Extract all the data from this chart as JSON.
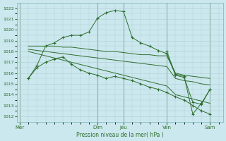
{
  "bg_color": "#cce8ef",
  "grid_color": "#b0cdd4",
  "line_color": "#2d6e2d",
  "title": "Pression niveau de la mer( hPa )",
  "ylim": [
    1011.5,
    1022.5
  ],
  "yticks": [
    1012,
    1013,
    1014,
    1015,
    1016,
    1017,
    1018,
    1019,
    1020,
    1021,
    1022
  ],
  "day_labels": [
    "Mer",
    "Dim",
    "Jeu",
    "Ven",
    "Sam"
  ],
  "day_x": [
    0,
    9,
    12,
    17,
    22
  ],
  "vline_x": [
    0,
    9,
    12,
    17,
    22
  ],
  "xlim": [
    -0.3,
    23.5
  ],
  "s1_x": [
    1,
    2,
    3,
    4,
    5,
    6,
    7,
    8,
    9,
    10,
    11,
    12,
    13,
    14,
    15,
    16,
    17
  ],
  "s1_y": [
    1015.5,
    1016.7,
    1018.5,
    1018.8,
    1019.3,
    1019.5,
    1019.5,
    1019.8,
    1021.1,
    1021.6,
    1021.8,
    1021.7,
    1019.3,
    1018.8,
    1018.5,
    1018.1,
    1017.8
  ],
  "s2_x": [
    1,
    2,
    3,
    4,
    5,
    6,
    7,
    8,
    9,
    10,
    11,
    12,
    13,
    14,
    15,
    16,
    17,
    18,
    19,
    20,
    21,
    22
  ],
  "s2_y": [
    1018.5,
    1018.5,
    1018.5,
    1018.5,
    1018.4,
    1018.4,
    1018.3,
    1018.2,
    1018.1,
    1018.0,
    1018.0,
    1017.9,
    1017.8,
    1017.7,
    1017.7,
    1017.6,
    1017.6,
    1016.0,
    1015.8,
    1015.7,
    1015.6,
    1015.5
  ],
  "s3_x": [
    1,
    2,
    3,
    4,
    5,
    6,
    7,
    8,
    9,
    10,
    11,
    12,
    13,
    14,
    15,
    16,
    17,
    18,
    19,
    20,
    21,
    22
  ],
  "s3_y": [
    1018.2,
    1018.1,
    1018.0,
    1017.9,
    1017.8,
    1017.7,
    1017.6,
    1017.5,
    1017.4,
    1017.3,
    1017.2,
    1017.1,
    1017.0,
    1016.9,
    1016.8,
    1016.7,
    1016.6,
    1015.5,
    1015.3,
    1015.2,
    1015.0,
    1014.9
  ],
  "s4_x": [
    1,
    2,
    3,
    4,
    5,
    6,
    7,
    8,
    9,
    10,
    11,
    12,
    13,
    14,
    15,
    16,
    17,
    18,
    19,
    20,
    21,
    22
  ],
  "s4_y": [
    1018.0,
    1017.8,
    1017.6,
    1017.4,
    1017.2,
    1017.0,
    1016.8,
    1016.6,
    1016.4,
    1016.2,
    1016.0,
    1015.8,
    1015.6,
    1015.4,
    1015.2,
    1015.0,
    1014.8,
    1014.0,
    1013.8,
    1013.6,
    1013.4,
    1013.2
  ],
  "s5_x": [
    1,
    2,
    3,
    4,
    5,
    6,
    7,
    8,
    9,
    10,
    11,
    12,
    13,
    14,
    15,
    16,
    17,
    18,
    19,
    20,
    21,
    22
  ],
  "s5_y": [
    1015.5,
    1016.5,
    1017.0,
    1017.3,
    1017.5,
    1016.8,
    1016.3,
    1016.0,
    1015.8,
    1015.5,
    1015.7,
    1015.5,
    1015.3,
    1015.0,
    1014.7,
    1014.5,
    1014.2,
    1013.8,
    1013.5,
    1013.0,
    1012.5,
    1012.2
  ],
  "s6_x": [
    17,
    18,
    19,
    20,
    21,
    22
  ],
  "s6_y": [
    1017.8,
    1015.8,
    1015.6,
    1013.3,
    1013.1,
    1014.5
  ],
  "s7_x": [
    17,
    18,
    19,
    20,
    21,
    22
  ],
  "s7_y": [
    1018.0,
    1015.9,
    1015.7,
    1012.2,
    1013.2,
    1014.5
  ]
}
